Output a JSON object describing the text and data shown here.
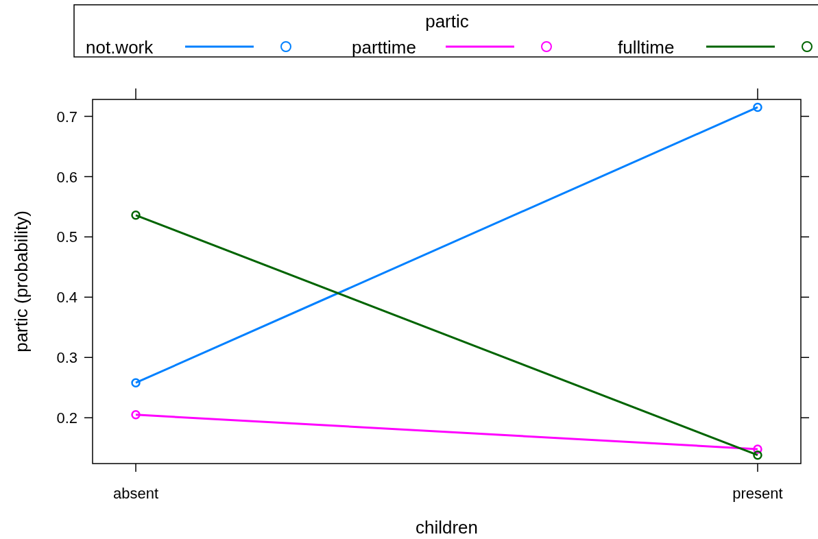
{
  "chart_data": {
    "type": "line",
    "xlabel": "children",
    "ylabel": "partic (probability)",
    "legend_title": "partic",
    "legend": "top",
    "marker": "circle",
    "line_style": "solid",
    "grid": false,
    "categories": [
      "absent",
      "present"
    ],
    "ylim": [
      0.124,
      0.728
    ],
    "yticks": [
      0.2,
      0.3,
      0.4,
      0.5,
      0.6,
      0.7
    ],
    "series": [
      {
        "name": "not.work",
        "color": "#0080ff",
        "values": [
          0.258,
          0.715
        ]
      },
      {
        "name": "parttime",
        "color": "#ff00ff",
        "values": [
          0.205,
          0.148
        ]
      },
      {
        "name": "fulltime",
        "color": "#006400",
        "values": [
          0.536,
          0.138
        ]
      }
    ]
  }
}
